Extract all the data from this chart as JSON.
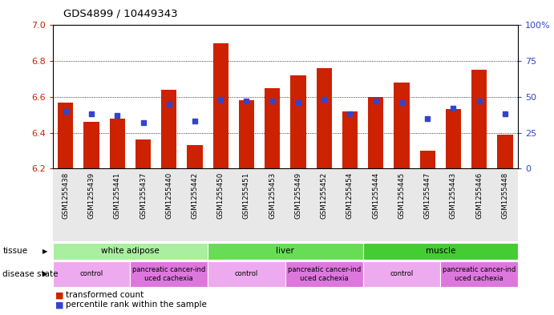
{
  "title": "GDS4899 / 10449343",
  "samples": [
    "GSM1255438",
    "GSM1255439",
    "GSM1255441",
    "GSM1255437",
    "GSM1255440",
    "GSM1255442",
    "GSM1255450",
    "GSM1255451",
    "GSM1255453",
    "GSM1255449",
    "GSM1255452",
    "GSM1255454",
    "GSM1255444",
    "GSM1255445",
    "GSM1255447",
    "GSM1255443",
    "GSM1255446",
    "GSM1255448"
  ],
  "bar_values": [
    6.57,
    6.46,
    6.48,
    6.36,
    6.64,
    6.33,
    6.9,
    6.58,
    6.65,
    6.72,
    6.76,
    6.52,
    6.6,
    6.68,
    6.3,
    6.53,
    6.75,
    6.39
  ],
  "dot_values": [
    40,
    38,
    37,
    32,
    45,
    33,
    48,
    47,
    47,
    46,
    48,
    38,
    47,
    46,
    35,
    42,
    47,
    38
  ],
  "ymin": 6.2,
  "ymax": 7.0,
  "yticks": [
    6.2,
    6.4,
    6.6,
    6.8,
    7.0
  ],
  "y2ticks": [
    0,
    25,
    50,
    75,
    100
  ],
  "y2ticklabels": [
    "0",
    "25",
    "50",
    "75",
    "100%"
  ],
  "bar_color": "#CC2200",
  "dot_color": "#3344CC",
  "bg_color": "#E8E8E8",
  "tissue_groups": [
    {
      "label": "white adipose",
      "start": 0,
      "end": 6,
      "color": "#AAEEA0"
    },
    {
      "label": "liver",
      "start": 6,
      "end": 12,
      "color": "#66DD55"
    },
    {
      "label": "muscle",
      "start": 12,
      "end": 18,
      "color": "#44CC33"
    }
  ],
  "disease_groups": [
    {
      "label": "control",
      "start": 0,
      "end": 3,
      "color": "#EEAAEE"
    },
    {
      "label": "pancreatic cancer-ind\nuced cachexia",
      "start": 3,
      "end": 6,
      "color": "#DD77DD"
    },
    {
      "label": "control",
      "start": 6,
      "end": 9,
      "color": "#EEAAEE"
    },
    {
      "label": "pancreatic cancer-ind\nuced cachexia",
      "start": 9,
      "end": 12,
      "color": "#DD77DD"
    },
    {
      "label": "control",
      "start": 12,
      "end": 15,
      "color": "#EEAAEE"
    },
    {
      "label": "pancreatic cancer-ind\nuced cachexia",
      "start": 15,
      "end": 18,
      "color": "#DD77DD"
    }
  ]
}
